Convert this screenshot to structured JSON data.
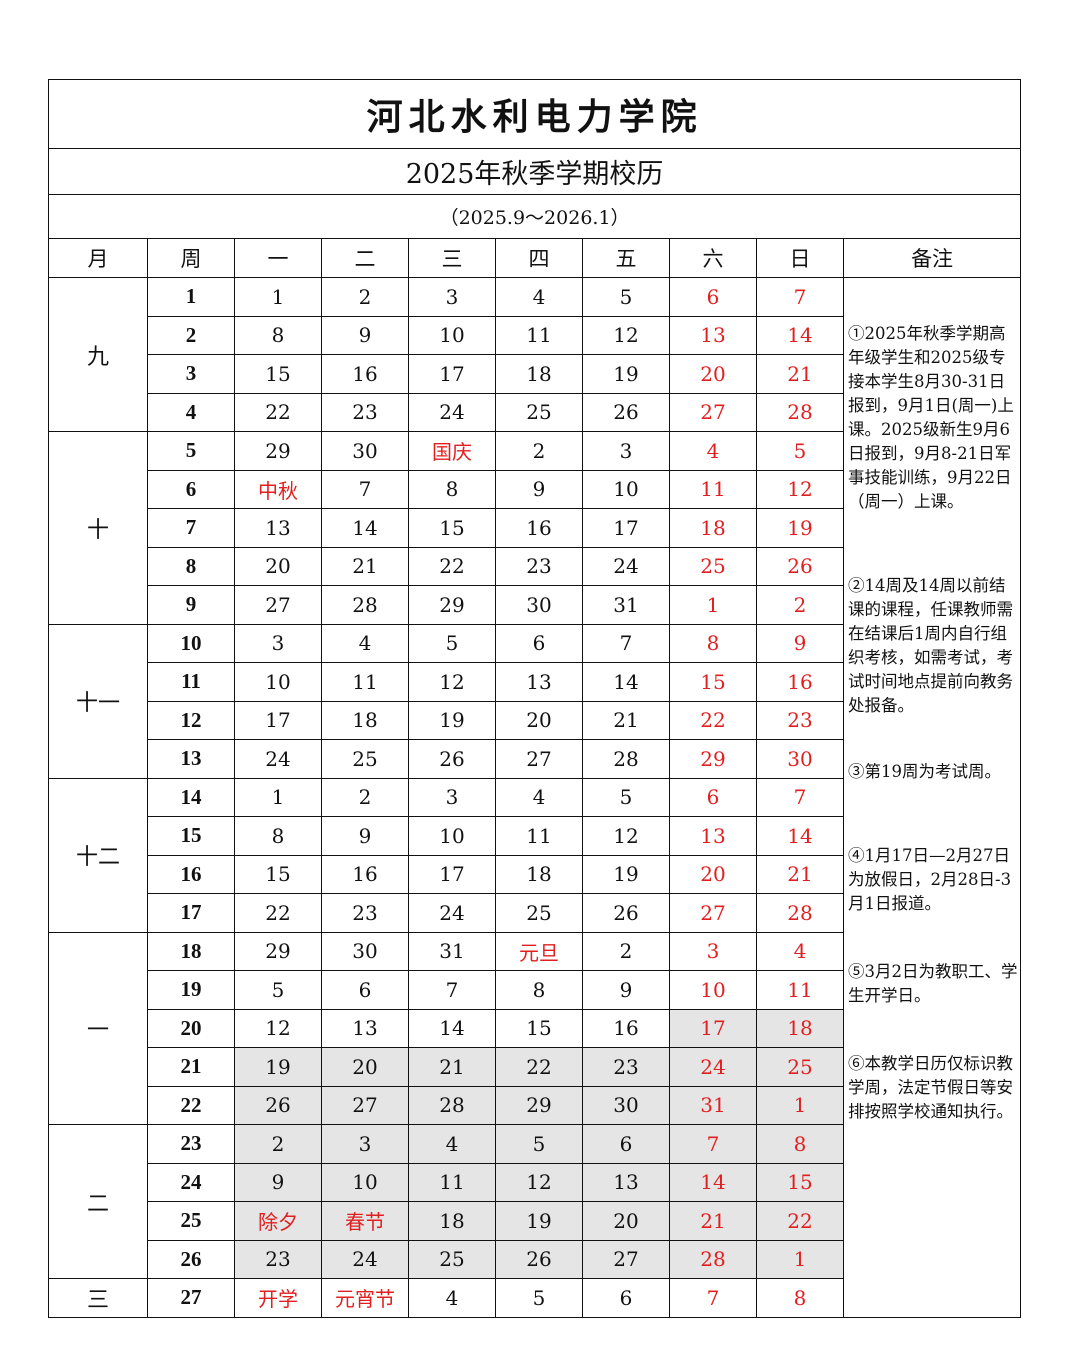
{
  "title": "河北水利电力学院",
  "subtitle": "2025年秋季学期校历",
  "date_range": "（2025.9～2026.1）",
  "headers": [
    "月",
    "周",
    "一",
    "二",
    "三",
    "四",
    "五",
    "六",
    "日",
    "备注"
  ],
  "colors": {
    "weekend_holiday": "#e02020",
    "shaded": "#e5e5e5",
    "text": "#111111"
  },
  "months": [
    {
      "label": "九",
      "weeks": 4
    },
    {
      "label": "十",
      "weeks": 5
    },
    {
      "label": "十一",
      "weeks": 4
    },
    {
      "label": "十二",
      "weeks": 4
    },
    {
      "label": "一",
      "weeks": 5
    },
    {
      "label": "二",
      "weeks": 4
    },
    {
      "label": "三",
      "weeks": 1
    }
  ],
  "weeks": [
    {
      "week": "1",
      "days": [
        "1",
        "2",
        "3",
        "4",
        "5",
        "6",
        "7"
      ]
    },
    {
      "week": "2",
      "days": [
        "8",
        "9",
        "10",
        "11",
        "12",
        "13",
        "14"
      ]
    },
    {
      "week": "3",
      "days": [
        "15",
        "16",
        "17",
        "18",
        "19",
        "20",
        "21"
      ]
    },
    {
      "week": "4",
      "days": [
        "22",
        "23",
        "24",
        "25",
        "26",
        "27",
        "28"
      ]
    },
    {
      "week": "5",
      "days": [
        "29",
        "30",
        "国庆",
        "2",
        "3",
        "4",
        "5"
      ]
    },
    {
      "week": "6",
      "days": [
        "中秋",
        "7",
        "8",
        "9",
        "10",
        "11",
        "12"
      ]
    },
    {
      "week": "7",
      "days": [
        "13",
        "14",
        "15",
        "16",
        "17",
        "18",
        "19"
      ]
    },
    {
      "week": "8",
      "days": [
        "20",
        "21",
        "22",
        "23",
        "24",
        "25",
        "26"
      ]
    },
    {
      "week": "9",
      "days": [
        "27",
        "28",
        "29",
        "30",
        "31",
        "1",
        "2"
      ]
    },
    {
      "week": "10",
      "days": [
        "3",
        "4",
        "5",
        "6",
        "7",
        "8",
        "9"
      ]
    },
    {
      "week": "11",
      "days": [
        "10",
        "11",
        "12",
        "13",
        "14",
        "15",
        "16"
      ]
    },
    {
      "week": "12",
      "days": [
        "17",
        "18",
        "19",
        "20",
        "21",
        "22",
        "23"
      ]
    },
    {
      "week": "13",
      "days": [
        "24",
        "25",
        "26",
        "27",
        "28",
        "29",
        "30"
      ]
    },
    {
      "week": "14",
      "days": [
        "1",
        "2",
        "3",
        "4",
        "5",
        "6",
        "7"
      ]
    },
    {
      "week": "15",
      "days": [
        "8",
        "9",
        "10",
        "11",
        "12",
        "13",
        "14"
      ]
    },
    {
      "week": "16",
      "days": [
        "15",
        "16",
        "17",
        "18",
        "19",
        "20",
        "21"
      ]
    },
    {
      "week": "17",
      "days": [
        "22",
        "23",
        "24",
        "25",
        "26",
        "27",
        "28"
      ]
    },
    {
      "week": "18",
      "days": [
        "29",
        "30",
        "31",
        "元旦",
        "2",
        "3",
        "4"
      ]
    },
    {
      "week": "19",
      "days": [
        "5",
        "6",
        "7",
        "8",
        "9",
        "10",
        "11"
      ]
    },
    {
      "week": "20",
      "days": [
        "12",
        "13",
        "14",
        "15",
        "16",
        "17",
        "18"
      ],
      "shaded_days": [
        5,
        6
      ]
    },
    {
      "week": "21",
      "days": [
        "19",
        "20",
        "21",
        "22",
        "23",
        "24",
        "25"
      ],
      "shaded_days": [
        0,
        1,
        2,
        3,
        4,
        5,
        6
      ]
    },
    {
      "week": "22",
      "days": [
        "26",
        "27",
        "28",
        "29",
        "30",
        "31",
        "1"
      ],
      "shaded_days": [
        0,
        1,
        2,
        3,
        4,
        5,
        6
      ]
    },
    {
      "week": "23",
      "days": [
        "2",
        "3",
        "4",
        "5",
        "6",
        "7",
        "8"
      ],
      "shaded_days": [
        0,
        1,
        2,
        3,
        4,
        5,
        6
      ]
    },
    {
      "week": "24",
      "days": [
        "9",
        "10",
        "11",
        "12",
        "13",
        "14",
        "15"
      ],
      "shaded_days": [
        0,
        1,
        2,
        3,
        4,
        5,
        6
      ]
    },
    {
      "week": "25",
      "days": [
        "除夕",
        "春节",
        "18",
        "19",
        "20",
        "21",
        "22"
      ],
      "shaded_days": [
        0,
        1,
        2,
        3,
        4,
        5,
        6
      ]
    },
    {
      "week": "26",
      "days": [
        "23",
        "24",
        "25",
        "26",
        "27",
        "28",
        "1"
      ],
      "shaded_days": [
        0,
        1,
        2,
        3,
        4,
        5,
        6
      ]
    },
    {
      "week": "27",
      "days": [
        "开学",
        "元宵节",
        "4",
        "5",
        "6",
        "7",
        "8"
      ]
    }
  ],
  "holidays": [
    "国庆",
    "中秋",
    "元旦",
    "除夕",
    "春节",
    "开学",
    "元宵节"
  ],
  "notes": [
    "①2025年秋季学期高年级学生和2025级专接本学生8月30-31日报到，9月1日(周一)上课。2025级新生9月6日报到，9月8-21日军事技能训练，9月22日（周一）上课。",
    "②14周及14周以前结课的课程，任课教师需在结课后1周内自行组织考核，如需考试，考试时间地点提前向教务处报备。",
    "③第19周为考试周。",
    "④1月17日—2月27日为放假日，2月28日-3月1日报道。",
    "⑤3月2日为教职工、学生开学日。",
    "⑥本教学日历仅标识教学周，法定节假日等安排按照学校通知执行。"
  ]
}
